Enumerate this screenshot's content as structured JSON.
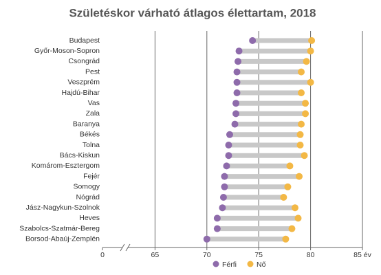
{
  "chart_data": {
    "type": "dumbbell",
    "title": "Születéskor várható átlagos élettartam, 2018",
    "categories": [
      "Budapest",
      "Győr-Moson-Sopron",
      "Csongrád",
      "Pest",
      "Veszprém",
      "Hajdú-Bihar",
      "Vas",
      "Zala",
      "Baranya",
      "Békés",
      "Tolna",
      "Bács-Kiskun",
      "Komárom-Esztergom",
      "Fejér",
      "Somogy",
      "Nógrád",
      "Jász-Nagykun-Szolnok",
      "Heves",
      "Szabolcs-Szatmár-Bereg",
      "Borsod-Abaúj-Zemplén"
    ],
    "series": [
      {
        "name": "Férfi",
        "color": "#8e6bab",
        "values": [
          74.4,
          73.1,
          73.0,
          72.9,
          72.9,
          72.9,
          72.8,
          72.8,
          72.7,
          72.2,
          72.1,
          72.1,
          71.9,
          71.7,
          71.7,
          71.6,
          71.5,
          71.0,
          71.0,
          70.0
        ]
      },
      {
        "name": "Nő",
        "color": "#f3b845",
        "values": [
          80.1,
          80.0,
          79.6,
          79.1,
          80.0,
          79.1,
          79.5,
          79.5,
          79.1,
          79.0,
          79.0,
          79.4,
          78.0,
          78.9,
          77.8,
          77.4,
          78.5,
          78.8,
          78.2,
          77.6
        ]
      }
    ],
    "connector_color": "#c8c8c8",
    "xlim": [
      60,
      85
    ],
    "x_axis_break": true,
    "xticks": [
      0,
      65,
      70,
      75,
      80,
      {
        "value": 85,
        "label": "85 év"
      }
    ],
    "grid": true
  }
}
